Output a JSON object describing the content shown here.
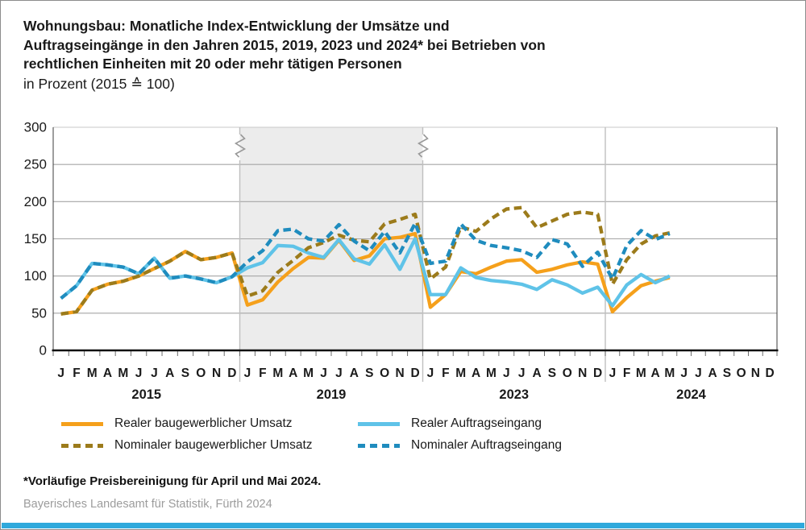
{
  "header": {
    "title_lines": [
      "Wohnungsbau: Monatliche Index-Entwicklung der Umsätze und",
      "Auftragseingänge in den Jahren 2015, 2019, 2023 und 2024* bei Betrieben von",
      "rechtlichen Einheiten mit 20 oder mehr tätigen Personen"
    ],
    "subtitle": "in Prozent (2015 ≙ 100)"
  },
  "chart_data": {
    "type": "line",
    "title": "Wohnungsbau: Monatliche Index-Entwicklung der Umsätze und Auftragseingänge in den Jahren 2015, 2019, 2023 und 2024 bei Betrieben von rechtlichen Einheiten mit 20 oder mehr tätigen Personen",
    "ylabel": "in Prozent (2015 ≙ 100)",
    "y_axis": {
      "min": 0,
      "max": 300,
      "tick_step": 50,
      "label_values": [
        300,
        250,
        200,
        150,
        100,
        50,
        0
      ],
      "grid": true
    },
    "month_labels": [
      "J",
      "F",
      "M",
      "A",
      "M",
      "J",
      "J",
      "A",
      "S",
      "O",
      "N",
      "D"
    ],
    "panels": [
      {
        "year": "2015",
        "shaded": false,
        "break_after": true
      },
      {
        "year": "2019",
        "shaded": true,
        "break_after": true
      },
      {
        "year": "2023",
        "shaded": false,
        "break_after": false
      },
      {
        "year": "2024",
        "shaded": false,
        "break_after": false
      }
    ],
    "colors": {
      "shading": "#ececec"
    },
    "series": [
      {
        "name": "Realer baugewerblicher Umsatz",
        "color": "#F5A01B",
        "dashed": false,
        "values": {
          "2015": [
            49,
            52,
            81,
            89,
            93,
            100,
            110,
            120,
            133,
            122,
            125,
            131
          ],
          "2019": [
            61,
            68,
            92,
            110,
            125,
            124,
            148,
            121,
            127,
            150,
            152,
            157
          ],
          "2023": [
            58,
            75,
            106,
            103,
            112,
            120,
            122,
            105,
            109,
            115,
            119,
            116
          ],
          "2024": [
            52,
            71,
            87,
            93,
            98
          ]
        }
      },
      {
        "name": "Nominaler baugewerblicher Umsatz",
        "color": "#9C7B1B",
        "dashed": true,
        "values": {
          "2015": [
            49,
            52,
            81,
            89,
            93,
            100,
            110,
            120,
            133,
            122,
            125,
            131
          ],
          "2019": [
            73,
            80,
            105,
            121,
            138,
            145,
            155,
            148,
            146,
            170,
            176,
            183
          ],
          "2023": [
            96,
            112,
            166,
            160,
            177,
            190,
            192,
            165,
            174,
            183,
            186,
            183
          ],
          "2024": [
            89,
            122,
            143,
            154,
            158
          ]
        }
      },
      {
        "name": "Realer Auftragseingang",
        "color": "#5FC3E8",
        "dashed": false,
        "values": {
          "2015": [
            70,
            87,
            117,
            115,
            112,
            103,
            124,
            97,
            100,
            96,
            91,
            99
          ],
          "2019": [
            111,
            118,
            141,
            140,
            131,
            125,
            149,
            123,
            116,
            142,
            109,
            150
          ],
          "2023": [
            75,
            75,
            111,
            98,
            94,
            92,
            89,
            82,
            95,
            88,
            77,
            85
          ],
          "2024": [
            60,
            88,
            102,
            91,
            100
          ]
        }
      },
      {
        "name": "Nominaler Auftragseingang",
        "color": "#1F8CBE",
        "dashed": true,
        "values": {
          "2015": [
            70,
            87,
            117,
            115,
            112,
            103,
            124,
            97,
            100,
            96,
            91,
            99
          ],
          "2019": [
            119,
            134,
            161,
            163,
            150,
            147,
            169,
            147,
            134,
            160,
            131,
            171
          ],
          "2023": [
            117,
            120,
            170,
            148,
            141,
            138,
            134,
            125,
            149,
            143,
            113,
            132
          ],
          "2024": [
            96,
            141,
            161,
            149,
            157
          ]
        }
      }
    ],
    "legend_position": "bottom"
  },
  "footer": {
    "footnote": "*Vorläufige Preisbereinigung für April und Mai 2024.",
    "source": "Bayerisches Landesamt für Statistik, Fürth 2024"
  },
  "brand": {
    "bar_color": "#2FA9DC"
  }
}
